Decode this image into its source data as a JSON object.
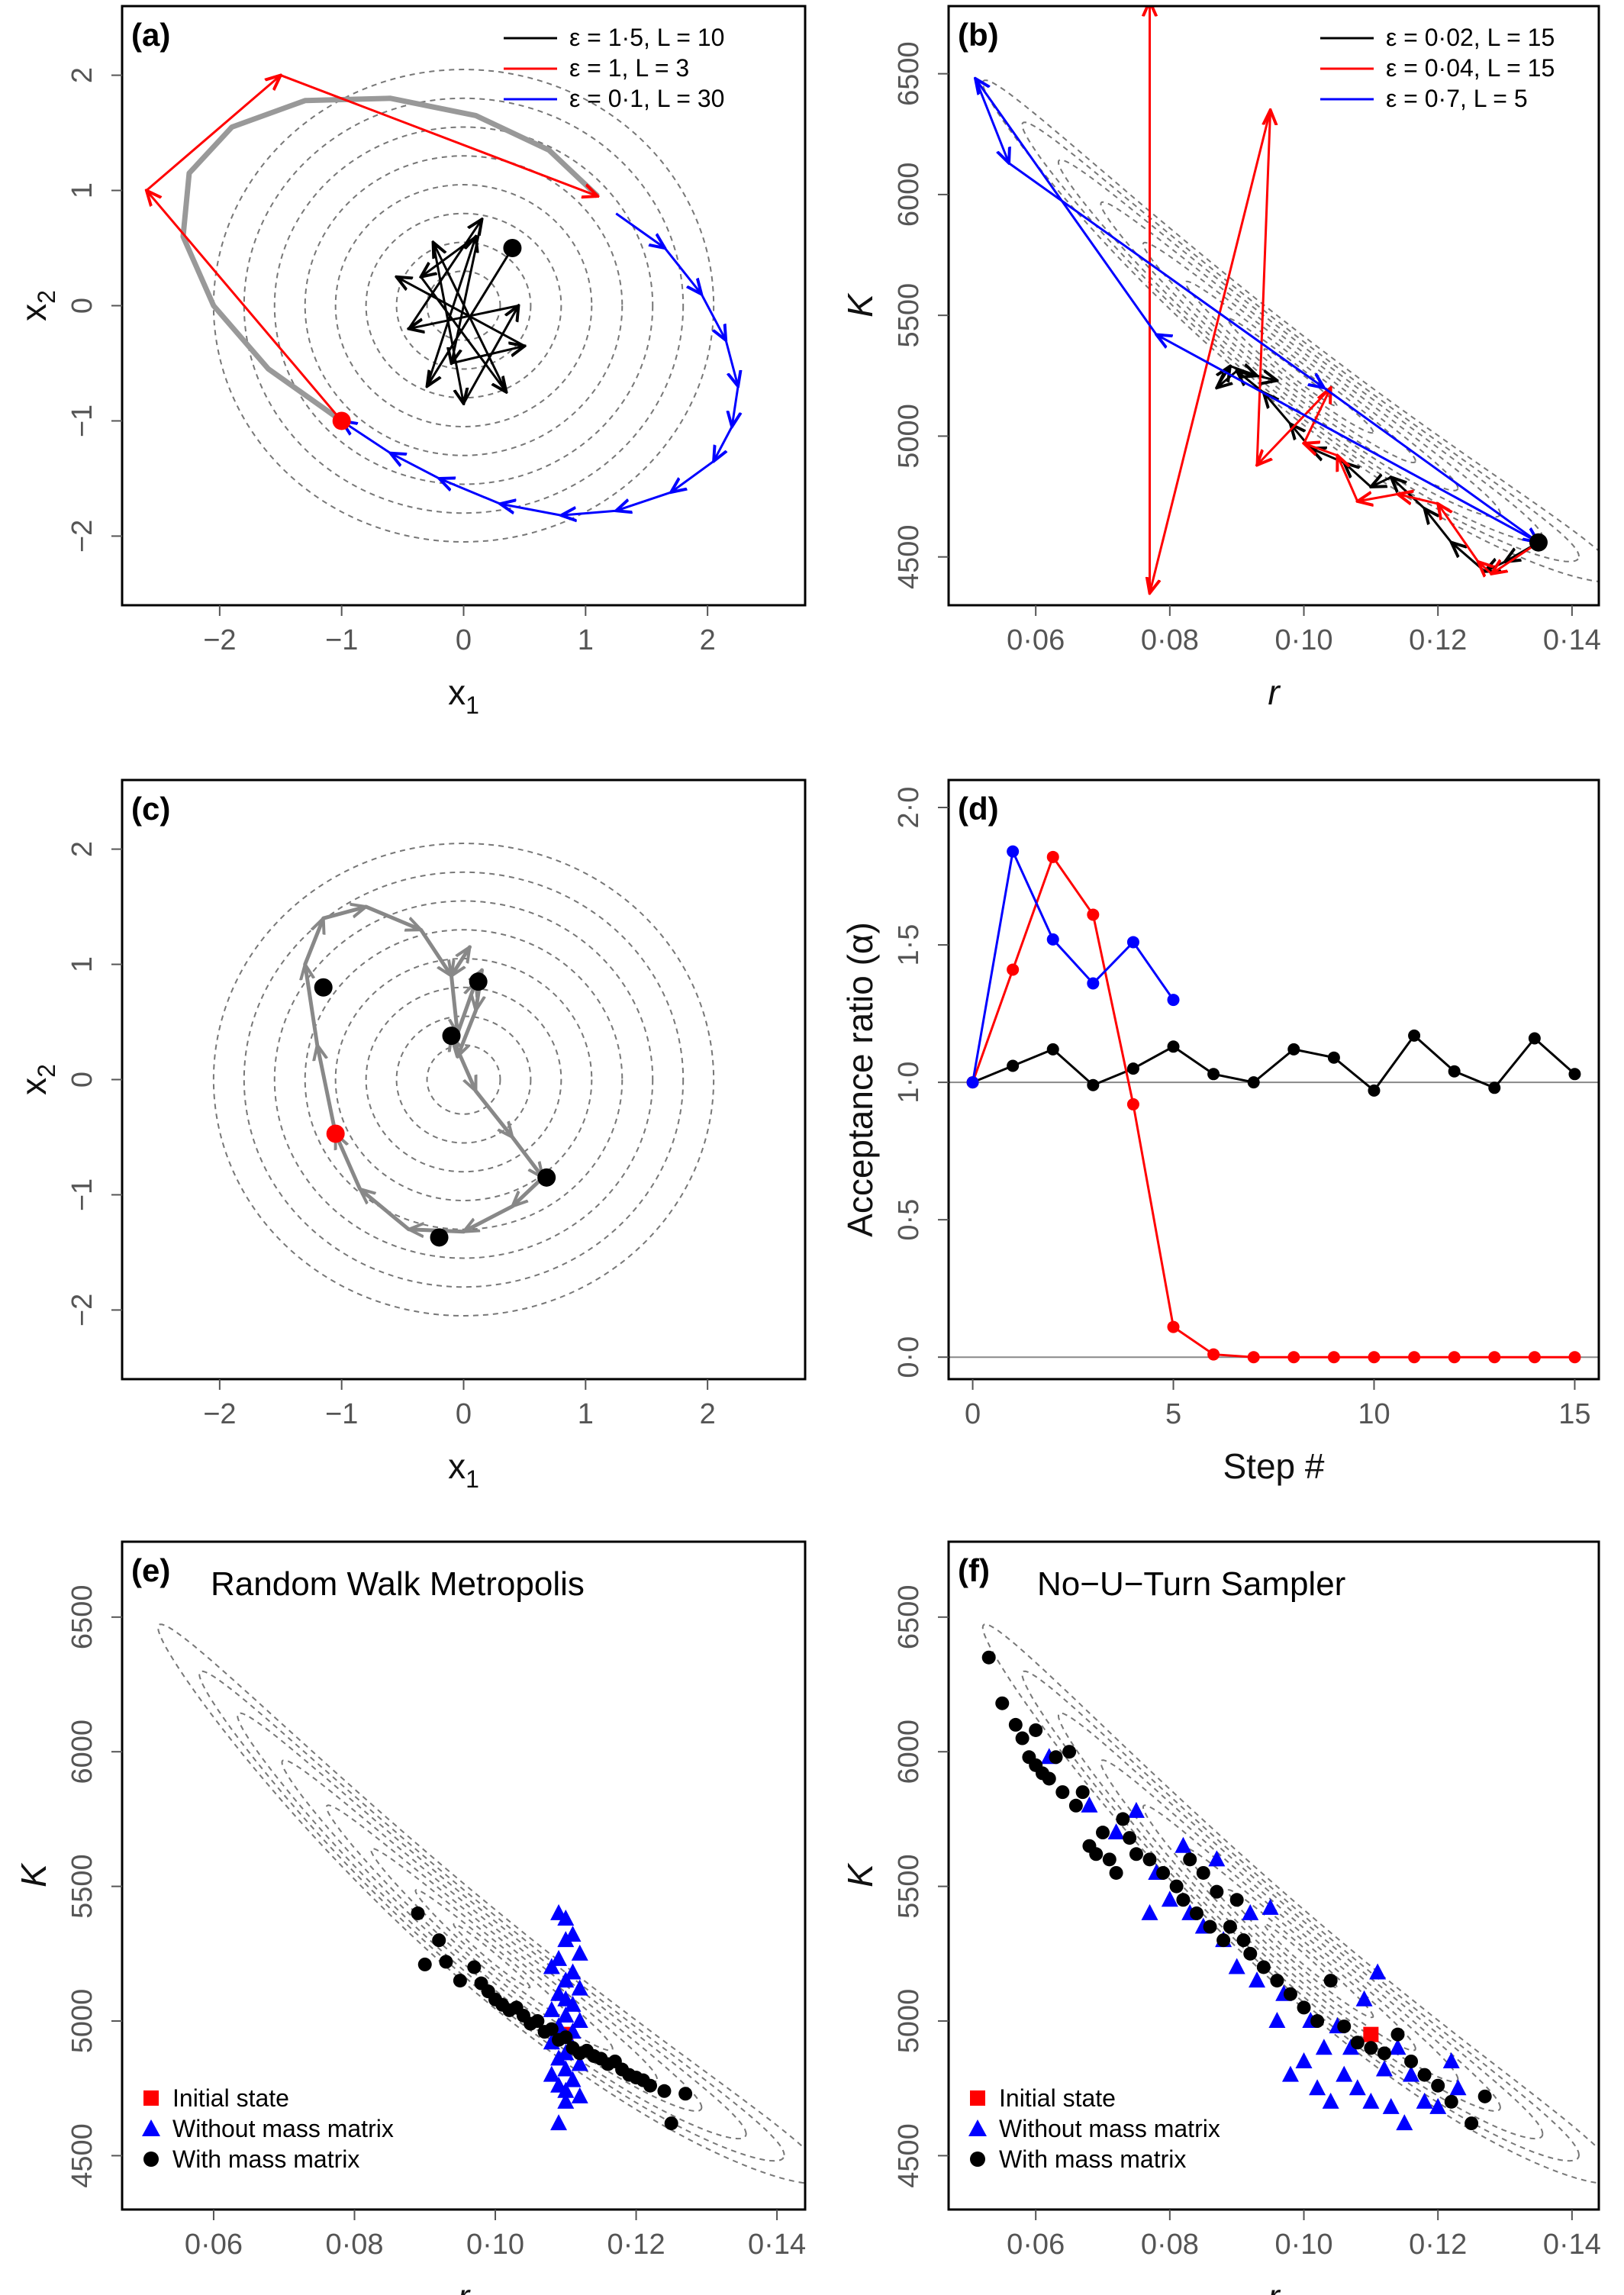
{
  "chart_data": [
    {
      "panel": "(a)",
      "type": "line",
      "xlabel": "x",
      "xlabel_sub": "1",
      "ylabel": "x",
      "ylabel_sub": "2",
      "xlim": [
        -2.8,
        2.8
      ],
      "ylim": [
        -2.6,
        2.6
      ],
      "xticks": [
        -2,
        -1,
        0,
        1,
        2
      ],
      "yticks": [
        -2,
        -1,
        0,
        1,
        2
      ],
      "xtick_labels": [
        "−2",
        "−1",
        "0",
        "1",
        "2"
      ],
      "ytick_labels": [
        "−2",
        "−1",
        "0",
        "1",
        "2"
      ],
      "grid": false,
      "legend_position": "top-right",
      "contour_radii": [
        0.3,
        0.55,
        0.8,
        1.05,
        1.3,
        1.55,
        1.8,
        2.05
      ],
      "series": [
        {
          "name": "ε = 1·5, L = 10",
          "color": "#000000",
          "x": [
            0.4,
            -0.3,
            0.1,
            -0.35,
            0.35,
            -0.25,
            0.0,
            0.45,
            -0.45,
            0.15,
            -0.1,
            0.5,
            -0.55
          ],
          "y": [
            0.5,
            -0.7,
            0.6,
            0.25,
            -0.75,
            0.55,
            -0.85,
            0.0,
            -0.2,
            0.75,
            -0.5,
            -0.35,
            0.25
          ]
        },
        {
          "name": "ε = 1, L = 3",
          "color": "#ff0000",
          "x": [
            -1.0,
            -2.6,
            -1.5,
            1.1
          ],
          "y": [
            -1.0,
            1.0,
            2.0,
            0.95
          ]
        },
        {
          "name": "ε = 0·1, L = 30",
          "color": "#0000ff",
          "x": [
            1.25,
            1.65,
            1.95,
            2.15,
            2.25,
            2.2,
            2.05,
            1.7,
            1.25,
            0.8,
            0.3,
            -0.2,
            -0.6,
            -1.0
          ],
          "y": [
            0.8,
            0.5,
            0.1,
            -0.3,
            -0.7,
            -1.05,
            -1.35,
            -1.62,
            -1.78,
            -1.82,
            -1.72,
            -1.5,
            -1.28,
            -1.0
          ]
        }
      ],
      "trajectory": {
        "color": "#999999",
        "x": [
          -1.0,
          -1.6,
          -2.05,
          -2.3,
          -2.25,
          -1.9,
          -1.3,
          -0.6,
          0.1,
          0.7,
          1.1
        ],
        "y": [
          -1.0,
          -0.55,
          0.0,
          0.6,
          1.15,
          1.55,
          1.78,
          1.8,
          1.65,
          1.35,
          0.95
        ]
      },
      "points": [
        {
          "x": -1.0,
          "y": -1.0,
          "color": "#ff0000"
        },
        {
          "x": 0.4,
          "y": 0.5,
          "color": "#000000"
        }
      ]
    },
    {
      "panel": "(b)",
      "type": "line",
      "xlabel": "r",
      "ylabel": "K",
      "xlim": [
        0.047,
        0.144
      ],
      "ylim": [
        4300,
        6780
      ],
      "xticks": [
        0.06,
        0.08,
        0.1,
        0.12,
        0.14
      ],
      "yticks": [
        4500,
        5000,
        5500,
        6000,
        6500
      ],
      "xtick_labels": [
        "0·06",
        "0·08",
        "0·10",
        "0·12",
        "0·14"
      ],
      "ytick_labels": [
        "4500",
        "5000",
        "5500",
        "6000",
        "6500"
      ],
      "grid": false,
      "legend_position": "top-right",
      "series": [
        {
          "name": "ε = 0·02, L = 15",
          "color": "#000000",
          "x": [
            0.135,
            0.13,
            0.127,
            0.122,
            0.118,
            0.113,
            0.11,
            0.106,
            0.101,
            0.098,
            0.094,
            0.09,
            0.087,
            0.089,
            0.093,
            0.096
          ],
          "y": [
            4560,
            4480,
            4440,
            4560,
            4700,
            4830,
            4790,
            4890,
            4950,
            5050,
            5180,
            5270,
            5200,
            5290,
            5250,
            5230
          ]
        },
        {
          "name": "ε = 0·04, L = 15",
          "color": "#ff0000",
          "x": [
            0.135,
            0.128,
            0.126,
            0.12,
            0.114,
            0.108,
            0.105,
            0.1,
            0.104,
            0.093,
            0.095,
            0.077,
            0.077
          ],
          "y": [
            4560,
            4430,
            4480,
            4720,
            4760,
            4730,
            4920,
            4970,
            5200,
            4880,
            6350,
            4350,
            6800
          ]
        },
        {
          "name": "ε = 0·7, L = 5",
          "color": "#0000ff",
          "x": [
            0.135,
            0.078,
            0.051,
            0.056,
            0.103,
            0.135
          ],
          "y": [
            4560,
            5420,
            6480,
            6130,
            5200,
            4560
          ]
        }
      ],
      "points": [
        {
          "x": 0.135,
          "y": 4560,
          "color": "#000000"
        }
      ]
    },
    {
      "panel": "(c)",
      "type": "line",
      "xlabel": "x",
      "xlabel_sub": "1",
      "ylabel": "x",
      "ylabel_sub": "2",
      "xlim": [
        -2.8,
        2.8
      ],
      "ylim": [
        -2.6,
        2.6
      ],
      "xticks": [
        -2,
        -1,
        0,
        1,
        2
      ],
      "yticks": [
        -2,
        -1,
        0,
        1,
        2
      ],
      "xtick_labels": [
        "−2",
        "−1",
        "0",
        "1",
        "2"
      ],
      "ytick_labels": [
        "−2",
        "−1",
        "0",
        "1",
        "2"
      ],
      "grid": false,
      "contour_radii": [
        0.3,
        0.55,
        0.8,
        1.05,
        1.3,
        1.55,
        1.8,
        2.05
      ],
      "trajectory": {
        "color": "#888888",
        "x": [
          -1.05,
          -1.2,
          -1.3,
          -1.15,
          -0.8,
          -0.35,
          -0.1,
          0.05,
          -0.1,
          -0.05,
          0.1,
          0.15,
          0.1,
          -0.05,
          -0.1,
          0.1,
          0.4,
          0.65,
          0.4,
          0.0,
          -0.45,
          -0.85,
          -1.05
        ],
        "y": [
          -0.47,
          0.3,
          1.0,
          1.4,
          1.5,
          1.3,
          0.9,
          1.15,
          0.9,
          0.4,
          0.85,
          0.95,
          0.6,
          0.2,
          0.38,
          -0.1,
          -0.5,
          -0.85,
          -1.1,
          -1.32,
          -1.3,
          -0.95,
          -0.47
        ]
      },
      "points": [
        {
          "x": -1.05,
          "y": -0.47,
          "color": "#ff0000"
        },
        {
          "x": -1.15,
          "y": 0.8,
          "color": "#000000"
        },
        {
          "x": 0.12,
          "y": 0.85,
          "color": "#000000"
        },
        {
          "x": -0.1,
          "y": 0.38,
          "color": "#000000"
        },
        {
          "x": 0.68,
          "y": -0.85,
          "color": "#000000"
        },
        {
          "x": -0.2,
          "y": -1.37,
          "color": "#000000"
        }
      ]
    },
    {
      "panel": "(d)",
      "type": "line",
      "xlabel": "Step #",
      "ylabel": "Acceptance ratio (α)",
      "xlim": [
        -0.6,
        15.6
      ],
      "ylim": [
        -0.08,
        2.1
      ],
      "xticks": [
        0,
        5,
        10,
        15
      ],
      "yticks": [
        0,
        0.5,
        1,
        1.5,
        2
      ],
      "xtick_labels": [
        "0",
        "5",
        "10",
        "15"
      ],
      "ytick_labels": [
        "0·0",
        "0·5",
        "1·0",
        "1·5",
        "2·0"
      ],
      "hlines": [
        0,
        1
      ],
      "grid": false,
      "series": [
        {
          "color": "#000000",
          "x": [
            0,
            1,
            2,
            3,
            4,
            5,
            6,
            7,
            8,
            9,
            10,
            11,
            12,
            13,
            14,
            15
          ],
          "y": [
            1.0,
            1.06,
            1.12,
            0.99,
            1.05,
            1.13,
            1.03,
            1.0,
            1.12,
            1.09,
            0.97,
            1.17,
            1.04,
            0.98,
            1.16,
            1.03
          ]
        },
        {
          "color": "#ff0000",
          "x": [
            0,
            1,
            2,
            3,
            4,
            5,
            6,
            7,
            8,
            9,
            10,
            11,
            12,
            13,
            14,
            15
          ],
          "y": [
            1.0,
            1.41,
            1.82,
            1.61,
            0.92,
            0.11,
            0.01,
            0.0,
            0.0,
            0.0,
            0.0,
            0.0,
            0.0,
            0.0,
            0.0,
            0.0
          ]
        },
        {
          "color": "#0000ff",
          "x": [
            0,
            1,
            2,
            3,
            4,
            5
          ],
          "y": [
            1.0,
            1.84,
            1.52,
            1.36,
            1.51,
            1.3
          ]
        }
      ]
    },
    {
      "panel": "(e)",
      "title": "Random Walk Metropolis",
      "type": "scatter",
      "xlabel": "r",
      "ylabel": "K",
      "xlim": [
        0.047,
        0.144
      ],
      "ylim": [
        4300,
        6780
      ],
      "xticks": [
        0.06,
        0.08,
        0.1,
        0.12,
        0.14
      ],
      "yticks": [
        4500,
        5000,
        5500,
        6000,
        6500
      ],
      "xtick_labels": [
        "0·06",
        "0·08",
        "0·10",
        "0·12",
        "0·14"
      ],
      "ytick_labels": [
        "4500",
        "5000",
        "5500",
        "6000",
        "6500"
      ],
      "grid": false,
      "legend_position": "bottom-left",
      "series": [
        {
          "name": "Initial state",
          "marker": "square",
          "color": "#ff0000",
          "x": [
            0.11
          ],
          "y": [
            4950
          ]
        },
        {
          "name": "Without mass matrix",
          "marker": "triangle",
          "color": "#0000ff",
          "x": [
            0.109,
            0.11,
            0.111,
            0.11,
            0.112,
            0.109,
            0.108,
            0.111,
            0.11,
            0.112,
            0.109,
            0.11,
            0.111,
            0.108,
            0.11,
            0.112,
            0.109,
            0.111,
            0.11,
            0.108,
            0.111,
            0.11,
            0.109,
            0.112,
            0.11,
            0.108,
            0.111,
            0.109,
            0.11,
            0.112,
            0.11,
            0.109
          ],
          "y": [
            5400,
            5380,
            5320,
            5300,
            5250,
            5230,
            5200,
            5180,
            5150,
            5120,
            5100,
            5080,
            5060,
            5040,
            5020,
            5000,
            4980,
            4960,
            4940,
            4920,
            4900,
            4880,
            4860,
            4840,
            4820,
            4800,
            4780,
            4760,
            4740,
            4720,
            4700,
            4620
          ]
        },
        {
          "name": "With mass matrix",
          "marker": "circle",
          "color": "#000000",
          "x": [
            0.089,
            0.09,
            0.092,
            0.093,
            0.095,
            0.097,
            0.098,
            0.099,
            0.1,
            0.101,
            0.102,
            0.103,
            0.104,
            0.105,
            0.106,
            0.107,
            0.108,
            0.109,
            0.11,
            0.111,
            0.112,
            0.113,
            0.114,
            0.115,
            0.116,
            0.117,
            0.118,
            0.119,
            0.12,
            0.121,
            0.122,
            0.124,
            0.125,
            0.127
          ],
          "y": [
            5400,
            5210,
            5300,
            5220,
            5150,
            5200,
            5140,
            5110,
            5080,
            5060,
            5040,
            5050,
            5020,
            4990,
            5000,
            4960,
            4970,
            4930,
            4940,
            4900,
            4880,
            4890,
            4870,
            4860,
            4840,
            4850,
            4820,
            4800,
            4790,
            4780,
            4760,
            4740,
            4620,
            4730
          ]
        }
      ]
    },
    {
      "panel": "(f)",
      "title": "No−U−Turn Sampler",
      "type": "scatter",
      "xlabel": "r",
      "ylabel": "K",
      "xlim": [
        0.047,
        0.144
      ],
      "ylim": [
        4300,
        6780
      ],
      "xticks": [
        0.06,
        0.08,
        0.1,
        0.12,
        0.14
      ],
      "yticks": [
        4500,
        5000,
        5500,
        6000,
        6500
      ],
      "xtick_labels": [
        "0·06",
        "0·08",
        "0·10",
        "0·12",
        "0·14"
      ],
      "ytick_labels": [
        "4500",
        "5000",
        "5500",
        "6000",
        "6500"
      ],
      "grid": false,
      "legend_position": "bottom-left",
      "series": [
        {
          "name": "Initial state",
          "marker": "square",
          "color": "#ff0000",
          "x": [
            0.11
          ],
          "y": [
            4950
          ]
        },
        {
          "name": "Without mass matrix",
          "marker": "triangle",
          "color": "#0000ff",
          "x": [
            0.062,
            0.068,
            0.072,
            0.075,
            0.077,
            0.078,
            0.08,
            0.082,
            0.083,
            0.085,
            0.087,
            0.088,
            0.09,
            0.092,
            0.093,
            0.095,
            0.096,
            0.097,
            0.098,
            0.1,
            0.101,
            0.102,
            0.103,
            0.104,
            0.105,
            0.106,
            0.107,
            0.108,
            0.109,
            0.11,
            0.111,
            0.112,
            0.113,
            0.114,
            0.115,
            0.116,
            0.118,
            0.12,
            0.122,
            0.123
          ],
          "y": [
            5980,
            5800,
            5700,
            5780,
            5400,
            5550,
            5450,
            5650,
            5400,
            5350,
            5600,
            5300,
            5200,
            5400,
            5150,
            5420,
            5000,
            5100,
            4800,
            4850,
            5000,
            4750,
            4900,
            4700,
            4980,
            4800,
            4900,
            4750,
            5080,
            4700,
            5180,
            4820,
            4680,
            4900,
            4620,
            4800,
            4700,
            4680,
            4850,
            4750
          ]
        },
        {
          "name": "With mass matrix",
          "marker": "circle",
          "color": "#000000",
          "x": [
            0.053,
            0.055,
            0.057,
            0.058,
            0.059,
            0.06,
            0.06,
            0.061,
            0.062,
            0.063,
            0.064,
            0.065,
            0.066,
            0.067,
            0.068,
            0.069,
            0.07,
            0.071,
            0.072,
            0.073,
            0.074,
            0.075,
            0.077,
            0.079,
            0.081,
            0.082,
            0.083,
            0.084,
            0.085,
            0.086,
            0.087,
            0.088,
            0.089,
            0.09,
            0.091,
            0.092,
            0.094,
            0.096,
            0.098,
            0.1,
            0.102,
            0.104,
            0.106,
            0.108,
            0.11,
            0.112,
            0.114,
            0.116,
            0.118,
            0.12,
            0.122,
            0.125,
            0.127
          ],
          "y": [
            6350,
            6180,
            6100,
            6050,
            5980,
            5950,
            6080,
            5920,
            5900,
            5980,
            5850,
            6000,
            5800,
            5850,
            5650,
            5620,
            5700,
            5600,
            5550,
            5750,
            5680,
            5620,
            5600,
            5550,
            5500,
            5450,
            5600,
            5400,
            5550,
            5350,
            5480,
            5300,
            5350,
            5450,
            5300,
            5250,
            5200,
            5150,
            5100,
            5050,
            5000,
            5150,
            4980,
            4920,
            4900,
            4880,
            4950,
            4850,
            4800,
            4760,
            4700,
            4620,
            4720
          ]
        }
      ]
    }
  ]
}
